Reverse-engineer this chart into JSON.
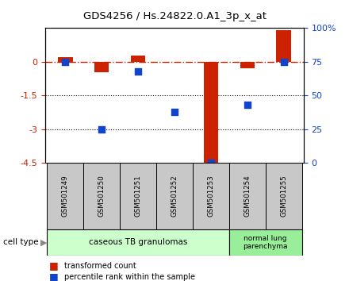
{
  "title": "GDS4256 / Hs.24822.0.A1_3p_x_at",
  "samples": [
    "GSM501249",
    "GSM501250",
    "GSM501251",
    "GSM501252",
    "GSM501253",
    "GSM501254",
    "GSM501255"
  ],
  "transformed_count": [
    0.22,
    -0.48,
    0.28,
    -0.02,
    -4.5,
    -0.28,
    1.42
  ],
  "percentile_rank": [
    75,
    25,
    68,
    38,
    0,
    43,
    75
  ],
  "ylim_left": [
    -4.5,
    1.5
  ],
  "ylim_right": [
    0,
    100
  ],
  "yticks_left": [
    0,
    -1.5,
    -3,
    -4.5
  ],
  "yticks_right": [
    0,
    25,
    50,
    75,
    100
  ],
  "ytick_labels_left": [
    "0",
    "-1.5",
    "-3",
    "-4.5"
  ],
  "ytick_labels_right": [
    "0",
    "25",
    "50",
    "75",
    "100%"
  ],
  "bar_color": "#cc2200",
  "scatter_color": "#1144cc",
  "group1_label": "caseous TB granulomas",
  "group2_label": "normal lung\nparenchyma",
  "group1_indices": [
    0,
    1,
    2,
    3,
    4
  ],
  "group2_indices": [
    5,
    6
  ],
  "group1_color": "#ccffcc",
  "group2_color": "#99ee99",
  "sample_box_color": "#c8c8c8",
  "legend_bar_label": "transformed count",
  "legend_scatter_label": "percentile rank within the sample",
  "cell_type_label": "cell type"
}
